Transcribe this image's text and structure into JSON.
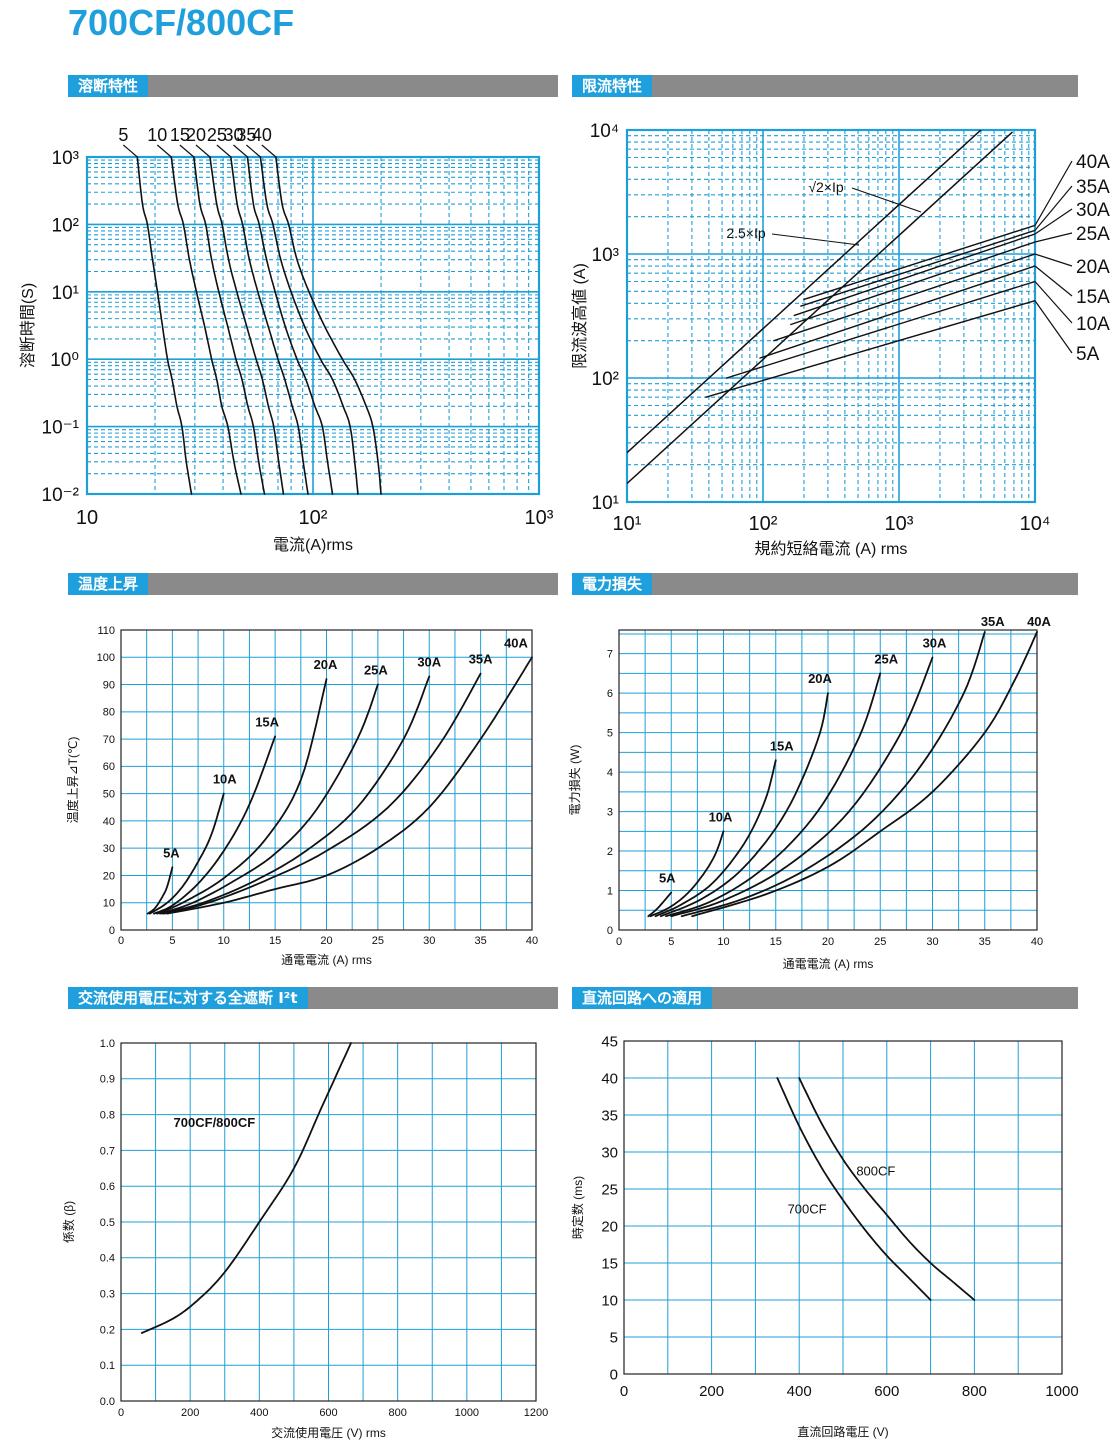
{
  "page": {
    "title": "700CF/800CF"
  },
  "colors": {
    "accent": "#1fa0dc",
    "bar": "#8a8a8a",
    "grid": "#1f9fd8",
    "curve": "#111111"
  },
  "sections": [
    {
      "id": "melting",
      "label": "溶断特性"
    },
    {
      "id": "limiting",
      "label": "限流特性"
    },
    {
      "id": "temp",
      "label": "温度上昇"
    },
    {
      "id": "power",
      "label": "電力損失"
    },
    {
      "id": "i2t",
      "label": "交流使用電圧に対する全遮断 I²t"
    },
    {
      "id": "dc",
      "label": "直流回路への適用"
    }
  ],
  "chart_data": [
    {
      "id": "melting",
      "type": "line",
      "title": "溶断特性",
      "xlabel": "電流(A)rms",
      "ylabel": "溶断時間(S)",
      "xscale": "log",
      "yscale": "log",
      "xlim": [
        10,
        1000
      ],
      "ylim": [
        0.01,
        1000
      ],
      "grid": true,
      "xticks": [
        {
          "v": 10,
          "label": "10"
        },
        {
          "v": 100,
          "label": "10²"
        },
        {
          "v": 1000,
          "label": "10³"
        }
      ],
      "yticks": [
        {
          "v": 1000,
          "label": "10³"
        },
        {
          "v": 100,
          "label": "10²"
        },
        {
          "v": 10,
          "label": "10¹"
        },
        {
          "v": 1,
          "label": "10⁰"
        },
        {
          "v": 0.1,
          "label": "10⁻¹"
        },
        {
          "v": 0.01,
          "label": "10⁻²"
        }
      ],
      "series": [
        {
          "name": "5",
          "x": [
            16.7,
            17.6,
            18.5,
            19.5,
            20.5,
            21.6,
            22.7,
            23.8,
            25.0,
            26.3,
            27.5,
            29.0
          ],
          "y": [
            1000,
            200,
            100,
            30,
            10,
            3,
            1,
            0.5,
            0.2,
            0.1,
            0.03,
            0.01
          ]
        },
        {
          "name": "10",
          "x": [
            23.6,
            25.2,
            26.7,
            28.4,
            30.5,
            33.2,
            35.6,
            37.5,
            39.5,
            42.0,
            44.7,
            48.0
          ],
          "y": [
            1000,
            200,
            100,
            30,
            10,
            3,
            1,
            0.5,
            0.2,
            0.1,
            0.03,
            0.01
          ]
        },
        {
          "name": "15",
          "x": [
            29.7,
            31.6,
            33.5,
            35.6,
            38.3,
            42.0,
            45.6,
            48.5,
            51.5,
            54.5,
            57.5,
            61.0
          ],
          "y": [
            1000,
            200,
            100,
            30,
            10,
            3,
            1,
            0.5,
            0.2,
            0.1,
            0.03,
            0.01
          ]
        },
        {
          "name": "20",
          "x": [
            35.0,
            37.5,
            39.6,
            42.3,
            46.0,
            51.0,
            56.0,
            59.7,
            63.5,
            67.0,
            70.5,
            74.0
          ],
          "y": [
            1000,
            200,
            100,
            30,
            10,
            3,
            1,
            0.5,
            0.2,
            0.1,
            0.03,
            0.01
          ]
        },
        {
          "name": "25",
          "x": [
            43.3,
            46.2,
            48.8,
            52.3,
            57.0,
            63.5,
            70.0,
            75.0,
            81.0,
            86.0,
            90.5,
            95.0
          ],
          "y": [
            1000,
            200,
            100,
            30,
            10,
            3,
            1,
            0.5,
            0.2,
            0.1,
            0.03,
            0.01
          ]
        },
        {
          "name": "30",
          "x": [
            51.3,
            54.5,
            57.8,
            62.3,
            68.0,
            75.5,
            85.0,
            93.0,
            102.0,
            110.0,
            116.0,
            122.0
          ],
          "y": [
            1000,
            200,
            100,
            30,
            10,
            3,
            1,
            0.5,
            0.2,
            0.1,
            0.03,
            0.01
          ]
        },
        {
          "name": "35",
          "x": [
            58.5,
            62.5,
            66.5,
            72.0,
            80.0,
            92.0,
            108.0,
            122.0,
            136.0,
            146.0,
            153.0,
            158.0
          ],
          "y": [
            1000,
            200,
            100,
            30,
            10,
            3,
            1,
            0.5,
            0.2,
            0.1,
            0.03,
            0.01
          ]
        },
        {
          "name": "40",
          "x": [
            68.5,
            73.0,
            78.0,
            85.0,
            96.0,
            113.0,
            135.0,
            153.0,
            172.0,
            184.0,
            194.0,
            200.0
          ],
          "y": [
            1000,
            200,
            100,
            30,
            10,
            3,
            1,
            0.5,
            0.2,
            0.1,
            0.03,
            0.01
          ]
        }
      ]
    },
    {
      "id": "limiting",
      "type": "line",
      "title": "限流特性",
      "xlabel": "規約短絡電流 (A) rms",
      "ylabel": "限流波高値 (A)",
      "xscale": "log",
      "yscale": "log",
      "xlim": [
        10,
        10000
      ],
      "ylim": [
        10,
        10000
      ],
      "grid": true,
      "xticks": [
        {
          "v": 10,
          "label": "10¹"
        },
        {
          "v": 100,
          "label": "10²"
        },
        {
          "v": 1000,
          "label": "10³"
        },
        {
          "v": 10000,
          "label": "10⁴"
        }
      ],
      "yticks": [
        {
          "v": 10,
          "label": "10¹"
        },
        {
          "v": 100,
          "label": "10²"
        },
        {
          "v": 1000,
          "label": "10³"
        },
        {
          "v": 10000,
          "label": "10⁴"
        }
      ],
      "reference_lines": [
        {
          "name": "√2×Ip",
          "x": [
            10,
            6770
          ],
          "y": [
            14.1,
            9570
          ],
          "label": "√2×Ip"
        },
        {
          "name": "2.5×Ip",
          "x": [
            10,
            4000
          ],
          "y": [
            25,
            10000
          ],
          "label": "2.5×Ip"
        }
      ],
      "series": [
        {
          "name": "5A",
          "x": [
            38,
            10000
          ],
          "y": [
            70,
            420
          ]
        },
        {
          "name": "10A",
          "x": [
            54,
            10000
          ],
          "y": [
            100,
            600
          ]
        },
        {
          "name": "15A",
          "x": [
            95,
            10000
          ],
          "y": [
            145,
            800
          ]
        },
        {
          "name": "20A",
          "x": [
            120,
            10000
          ],
          "y": [
            200,
            1000
          ]
        },
        {
          "name": "25A",
          "x": [
            160,
            10000
          ],
          "y": [
            270,
            1250
          ]
        },
        {
          "name": "30A",
          "x": [
            170,
            10000
          ],
          "y": [
            320,
            1450
          ]
        },
        {
          "name": "35A",
          "x": [
            190,
            10000
          ],
          "y": [
            380,
            1550
          ]
        },
        {
          "name": "40A",
          "x": [
            200,
            10000
          ],
          "y": [
            430,
            1700
          ]
        }
      ],
      "legend": [
        "40A",
        "35A",
        "30A",
        "25A",
        "20A",
        "15A",
        "10A",
        "5A"
      ]
    },
    {
      "id": "temp",
      "type": "line",
      "title": "温度上昇",
      "xlabel": "通電電流 (A) rms",
      "ylabel": "温度上昇⊿T(℃)",
      "xlim": [
        0,
        40
      ],
      "ylim": [
        0,
        110
      ],
      "grid": true,
      "xticks": [
        0,
        5,
        10,
        15,
        20,
        25,
        30,
        35,
        40
      ],
      "yticks": [
        0,
        10,
        20,
        30,
        40,
        50,
        60,
        70,
        80,
        90,
        100,
        110
      ],
      "series": [
        {
          "name": "5A",
          "x": [
            2.6,
            3.3,
            4.0,
            4.5,
            5.0
          ],
          "y": [
            6,
            8,
            12,
            16,
            23
          ]
        },
        {
          "name": "10A",
          "x": [
            2.8,
            4.5,
            6.0,
            7.5,
            8.8,
            10.0
          ],
          "y": [
            6,
            10,
            16,
            25,
            35,
            50
          ]
        },
        {
          "name": "15A",
          "x": [
            3.2,
            5.0,
            7.5,
            10.0,
            12.5,
            15.0
          ],
          "y": [
            6,
            9,
            17,
            29,
            46,
            71
          ]
        },
        {
          "name": "20A",
          "x": [
            3.5,
            6.0,
            10.0,
            14.0,
            17.5,
            20.0
          ],
          "y": [
            6,
            10,
            19,
            33,
            55,
            92
          ]
        },
        {
          "name": "25A",
          "x": [
            3.8,
            7.0,
            11.0,
            15.0,
            19.0,
            23.0,
            25.0
          ],
          "y": [
            6,
            10,
            18,
            28,
            44,
            70,
            90
          ]
        },
        {
          "name": "30A",
          "x": [
            4.0,
            8.0,
            13.0,
            18.0,
            23.0,
            27.5,
            30.0
          ],
          "y": [
            6,
            10,
            18,
            29,
            45,
            70,
            93
          ]
        },
        {
          "name": "35A",
          "x": [
            4.2,
            8.5,
            14.0,
            20.0,
            26.0,
            31.0,
            35.0
          ],
          "y": [
            6,
            10,
            18,
            29,
            45,
            68,
            94
          ]
        },
        {
          "name": "40A",
          "x": [
            4.5,
            10.0,
            15.0,
            20.0,
            25.0,
            30.0,
            35.0,
            40.0
          ],
          "y": [
            6,
            10,
            15,
            20,
            30,
            45,
            70,
            100
          ]
        }
      ]
    },
    {
      "id": "power",
      "type": "line",
      "title": "電力損失",
      "xlabel": "通電電流 (A) rms",
      "ylabel": "電力損失 (W)",
      "xlim": [
        0,
        40
      ],
      "ylim": [
        0,
        7.6
      ],
      "grid": true,
      "xticks": [
        0,
        5,
        10,
        15,
        20,
        25,
        30,
        35,
        40
      ],
      "yticks": [
        0,
        1,
        2,
        3,
        4,
        5,
        6,
        7
      ],
      "series": [
        {
          "name": "5A",
          "x": [
            2.8,
            3.5,
            4.2,
            5.0
          ],
          "y": [
            0.35,
            0.5,
            0.7,
            0.95
          ]
        },
        {
          "name": "10A",
          "x": [
            3.0,
            5.0,
            7.0,
            9.0,
            10.0
          ],
          "y": [
            0.35,
            0.6,
            1.05,
            1.8,
            2.5
          ]
        },
        {
          "name": "15A",
          "x": [
            3.5,
            6.0,
            9.0,
            12.0,
            14.0,
            15.0
          ],
          "y": [
            0.35,
            0.65,
            1.2,
            2.2,
            3.3,
            4.3
          ]
        },
        {
          "name": "20A",
          "x": [
            4.0,
            8.0,
            12.0,
            16.0,
            19.0,
            20.0
          ],
          "y": [
            0.35,
            0.8,
            1.6,
            3.0,
            4.8,
            6.0
          ]
        },
        {
          "name": "25A",
          "x": [
            4.5,
            9.0,
            14.0,
            19.0,
            23.0,
            25.0
          ],
          "y": [
            0.35,
            0.75,
            1.6,
            3.0,
            4.9,
            6.5
          ]
        },
        {
          "name": "30A",
          "x": [
            5.0,
            10.0,
            16.0,
            22.0,
            27.0,
            30.0
          ],
          "y": [
            0.35,
            0.75,
            1.6,
            3.0,
            5.0,
            6.9
          ]
        },
        {
          "name": "35A",
          "x": [
            6.0,
            12.0,
            18.0,
            24.0,
            29.0,
            33.0,
            35.0
          ],
          "y": [
            0.35,
            0.8,
            1.55,
            2.7,
            4.2,
            6.0,
            7.55
          ]
        },
        {
          "name": "40A",
          "x": [
            7.0,
            14.0,
            20.0,
            25.0,
            30.0,
            35.0,
            38.0,
            40.0
          ],
          "y": [
            0.35,
            0.9,
            1.6,
            2.5,
            3.5,
            5.0,
            6.4,
            7.55
          ]
        }
      ]
    },
    {
      "id": "i2t",
      "type": "line",
      "title": "交流使用電圧に対する全遮断 I²t",
      "xlabel": "交流使用電圧 (V) rms",
      "ylabel": "係数 (β)",
      "xlim": [
        0,
        1200
      ],
      "ylim": [
        0,
        1.0
      ],
      "grid": true,
      "xticks": [
        0,
        200,
        400,
        600,
        800,
        1000,
        1200
      ],
      "yticks": [
        0.0,
        0.1,
        0.2,
        0.3,
        0.4,
        0.5,
        0.6,
        0.7,
        0.8,
        0.9,
        1.0
      ],
      "yticklabels": [
        "0.0",
        "0.1",
        "0.2",
        "0.3",
        "0.4",
        "0.5",
        "0.6",
        "0.7",
        "0.8",
        "0.9",
        "1.0"
      ],
      "series": [
        {
          "name": "700CF/800CF",
          "x": [
            60,
            150,
            220,
            300,
            400,
            500,
            580,
            665
          ],
          "y": [
            0.19,
            0.23,
            0.28,
            0.36,
            0.5,
            0.65,
            0.82,
            1.0
          ]
        }
      ]
    },
    {
      "id": "dc",
      "type": "line",
      "title": "直流回路への適用",
      "xlabel": "直流回路電圧 (V)",
      "ylabel": "時定数 (ms)",
      "xlim": [
        0,
        1000
      ],
      "ylim": [
        0,
        45
      ],
      "grid": true,
      "xticks": [
        0,
        200,
        400,
        600,
        800,
        1000
      ],
      "yticks": [
        0,
        5,
        10,
        15,
        20,
        25,
        30,
        35,
        40,
        45
      ],
      "series": [
        {
          "name": "700CF",
          "x": [
            350,
            400,
            450,
            500,
            550,
            600,
            650,
            700
          ],
          "y": [
            40,
            33.5,
            28,
            23.5,
            19.5,
            16,
            13,
            10
          ]
        },
        {
          "name": "800CF",
          "x": [
            400,
            450,
            500,
            550,
            600,
            650,
            700,
            750,
            800
          ],
          "y": [
            40,
            34,
            29,
            25,
            21.5,
            18,
            15,
            12.5,
            10
          ]
        }
      ]
    }
  ]
}
